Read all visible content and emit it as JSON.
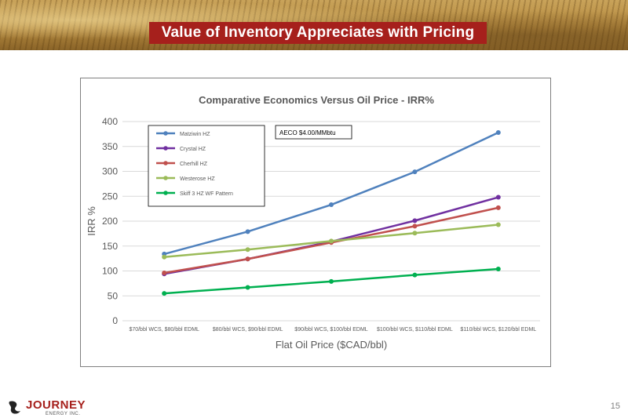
{
  "header": {
    "title": "Value of Inventory Appreciates with Pricing"
  },
  "footer": {
    "logo_text": "JOURNEY",
    "logo_subtext": "ENERGY INC.",
    "page_number": "15"
  },
  "chart_data": {
    "type": "line",
    "title": "Comparative Economics Versus Oil Price - IRR%",
    "xlabel": "Flat Oil Price ($CAD/bbl)",
    "ylabel": "IRR %",
    "ylim": [
      0,
      400
    ],
    "yticks": [
      0,
      50,
      100,
      150,
      200,
      250,
      300,
      350,
      400
    ],
    "grid": true,
    "legend_position": "top-left",
    "annotation": "AECO $4.00/MMbtu",
    "categories": [
      "$70/bbl WCS, $80/bbl EDML",
      "$80/bbl WCS, $90/bbl EDML",
      "$90/bbl WCS, $100/bbl EDML",
      "$100/bbl WCS, $110/bbl EDML",
      "$110/bbl WCS, $120/bbl EDML"
    ],
    "series": [
      {
        "name": "Matziwin HZ",
        "color": "#4f81bd",
        "values": [
          134,
          179,
          233,
          299,
          378
        ]
      },
      {
        "name": "Crystal HZ",
        "color": "#7030a0",
        "values": [
          94,
          124,
          159,
          201,
          248
        ]
      },
      {
        "name": "Cherhill HZ",
        "color": "#c0504d",
        "values": [
          96,
          124,
          157,
          190,
          227
        ]
      },
      {
        "name": "Westerose HZ",
        "color": "#9bbb59",
        "values": [
          128,
          143,
          160,
          176,
          193
        ]
      },
      {
        "name": "Skiff 3 HZ WF Pattern",
        "color": "#00b050",
        "values": [
          55,
          67,
          79,
          92,
          104
        ]
      }
    ]
  }
}
